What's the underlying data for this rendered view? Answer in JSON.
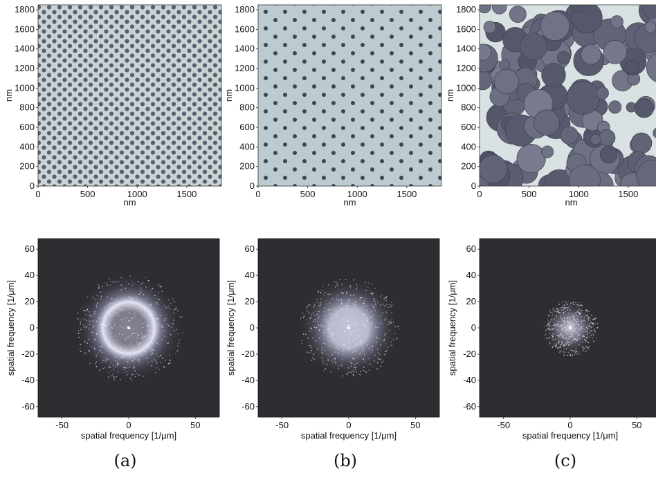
{
  "figure": {
    "columns": [
      {
        "caption": "(a)",
        "tem": {
          "ylabel": "nm",
          "xlabel": "nm",
          "yticks": [
            "1800",
            "1600",
            "1400",
            "1200",
            "1000",
            "800",
            "600",
            "400",
            "200",
            "0"
          ],
          "xticks": [
            "0",
            "500",
            "1000",
            "1500"
          ],
          "texture": "dense-small-dots"
        },
        "fft": {
          "ylabel": "spatial frequency [1/μm]",
          "xlabel": "spatial frequency [1/μm]",
          "yticks": [
            "60",
            "40",
            "20",
            "0",
            "-20",
            "-40",
            "-60"
          ],
          "xticks": [
            "-50",
            "0",
            "50"
          ],
          "pattern": "ring"
        }
      },
      {
        "caption": "(b)",
        "tem": {
          "ylabel": "nm",
          "xlabel": "nm",
          "yticks": [
            "1800",
            "1600",
            "1400",
            "1200",
            "1000",
            "800",
            "600",
            "400",
            "200",
            "0"
          ],
          "xticks": [
            "0",
            "500",
            "1000",
            "1500"
          ],
          "texture": "sparse-dots"
        },
        "fft": {
          "ylabel": "spatial frequency [1/μm]",
          "xlabel": "spatial frequency [1/μm]",
          "yticks": [
            "60",
            "40",
            "20",
            "0",
            "-20",
            "-40",
            "-60"
          ],
          "xticks": [
            "-50",
            "0",
            "50"
          ],
          "pattern": "diffuse-ring"
        }
      },
      {
        "caption": "(c)",
        "tem": {
          "ylabel": "nm",
          "xlabel": "nm",
          "yticks": [
            "1800",
            "1600",
            "1400",
            "1200",
            "1000",
            "800",
            "600",
            "400",
            "200",
            "0"
          ],
          "xticks": [
            "0",
            "500",
            "1000",
            "1500"
          ],
          "texture": "large-discs"
        },
        "fft": {
          "ylabel": "spatial frequency [1/μm]",
          "xlabel": "spatial frequency [1/μm]",
          "yticks": [
            "60",
            "40",
            "20",
            "0",
            "-20",
            "-40",
            "-60"
          ],
          "xticks": [
            "-50",
            "0",
            "50"
          ],
          "pattern": "central-blob"
        }
      }
    ]
  }
}
